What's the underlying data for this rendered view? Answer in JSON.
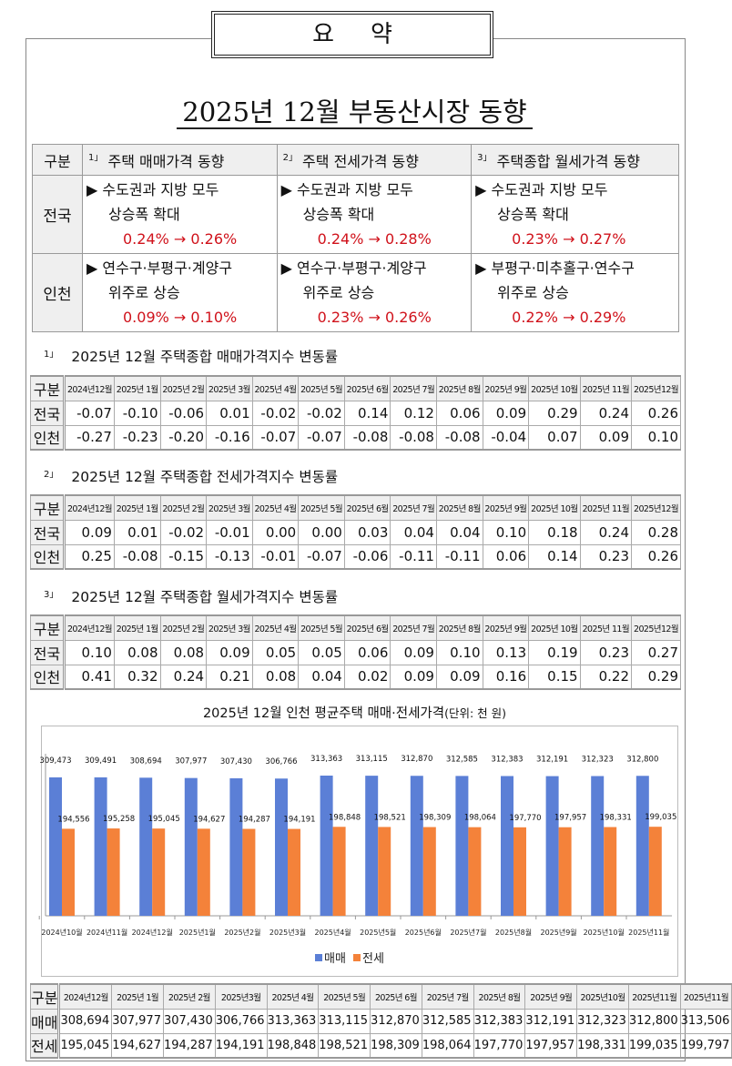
{
  "header": {
    "box": "요약",
    "title": "2025년 12월 부동산시장 동향"
  },
  "summary": {
    "corner": "구분",
    "columns": [
      {
        "num": "1」",
        "label": "주택 매매가격 동향"
      },
      {
        "num": "2」",
        "label": "주택 전세가격 동향"
      },
      {
        "num": "3」",
        "label": "주택종합 월세가격 동향"
      }
    ],
    "rows": [
      {
        "label": "전국",
        "cells": [
          {
            "line1": "▶ 수도권과 지방 모두",
            "line2": "상승폭 확대",
            "change": "0.24% → 0.26%"
          },
          {
            "line1": "▶ 수도권과 지방 모두",
            "line2": "상승폭 확대",
            "change": "0.24% → 0.28%"
          },
          {
            "line1": "▶ 수도권과 지방 모두",
            "line2": "상승폭 확대",
            "change": "0.23% → 0.27%"
          }
        ]
      },
      {
        "label": "인천",
        "cells": [
          {
            "line1": "▶ 연수구·부평구·계양구",
            "line2": "위주로 상승",
            "change": "0.09% → 0.10%"
          },
          {
            "line1": "▶ 연수구·부평구·계양구",
            "line2": "위주로 상승",
            "change": "0.23% → 0.26%"
          },
          {
            "line1": "▶ 부평구·미추홀구·연수구",
            "line2": "위주로 상승",
            "change": "0.22% → 0.29%"
          }
        ]
      }
    ]
  },
  "tables": [
    {
      "num": "1」",
      "title": "2025년 12월 주택종합 매매가격지수 변동률",
      "corner": "구분",
      "headers": [
        "2024년12월",
        "2025년 1월",
        "2025년 2월",
        "2025년 3월",
        "2025년 4월",
        "2025년 5월",
        "2025년 6월",
        "2025년 7월",
        "2025년 8월",
        "2025년 9월",
        "2025년 10월",
        "2025년 11월",
        "2025년12월"
      ],
      "rows": [
        {
          "label": "전국",
          "values": [
            "-0.07",
            "-0.10",
            "-0.06",
            "0.01",
            "-0.02",
            "-0.02",
            "0.14",
            "0.12",
            "0.06",
            "0.09",
            "0.29",
            "0.24",
            "0.26"
          ]
        },
        {
          "label": "인천",
          "values": [
            "-0.27",
            "-0.23",
            "-0.20",
            "-0.16",
            "-0.07",
            "-0.07",
            "-0.08",
            "-0.08",
            "-0.08",
            "-0.04",
            "0.07",
            "0.09",
            "0.10"
          ]
        }
      ]
    },
    {
      "num": "2」",
      "title": "2025년 12월 주택종합 전세가격지수 변동률",
      "corner": "구분",
      "headers": [
        "2024년12월",
        "2025년 1월",
        "2025년 2월",
        "2025년 3월",
        "2025년 4월",
        "2025년 5월",
        "2025년 6월",
        "2025년 7월",
        "2025년 8월",
        "2025년 9월",
        "2025년 10월",
        "2025년 11월",
        "2025년12월"
      ],
      "rows": [
        {
          "label": "전국",
          "values": [
            "0.09",
            "0.01",
            "-0.02",
            "-0.01",
            "0.00",
            "0.00",
            "0.03",
            "0.04",
            "0.04",
            "0.10",
            "0.18",
            "0.24",
            "0.28"
          ]
        },
        {
          "label": "인천",
          "values": [
            "0.25",
            "-0.08",
            "-0.15",
            "-0.13",
            "-0.01",
            "-0.07",
            "-0.06",
            "-0.11",
            "-0.11",
            "0.06",
            "0.14",
            "0.23",
            "0.26"
          ]
        }
      ]
    },
    {
      "num": "3」",
      "title": "2025년 12월 주택종합 월세가격지수 변동률",
      "corner": "구분",
      "headers": [
        "2024년12월",
        "2025년 1월",
        "2025년 2월",
        "2025년 3월",
        "2025년 4월",
        "2025년 5월",
        "2025년 6월",
        "2025년 7월",
        "2025년 8월",
        "2025년 9월",
        "2025년 10월",
        "2025년 11월",
        "2025년12월"
      ],
      "rows": [
        {
          "label": "전국",
          "values": [
            "0.10",
            "0.08",
            "0.08",
            "0.09",
            "0.05",
            "0.05",
            "0.06",
            "0.09",
            "0.10",
            "0.13",
            "0.19",
            "0.23",
            "0.27"
          ]
        },
        {
          "label": "인천",
          "values": [
            "0.41",
            "0.32",
            "0.24",
            "0.21",
            "0.08",
            "0.04",
            "0.02",
            "0.09",
            "0.09",
            "0.16",
            "0.15",
            "0.22",
            "0.29"
          ]
        }
      ]
    }
  ],
  "chart_title": {
    "main": "2025년 12월 인천 평균주택 매매·전세가격",
    "unit": "(단위: 천 원)"
  },
  "chart_data": {
    "type": "bar",
    "categories": [
      "2024년10월",
      "2024년11월",
      "2024년12월",
      "2025년1월",
      "2025년2월",
      "2025년3월",
      "2025년4월",
      "2025년5월",
      "2025년6월",
      "2025년7월",
      "2025년8월",
      "2025년9월",
      "2025년10월",
      "2025년11월"
    ],
    "series": [
      {
        "name": "매매",
        "color": "#5b7fd6",
        "values": [
          309473,
          309491,
          308694,
          307977,
          307430,
          306766,
          313363,
          313115,
          312870,
          312585,
          312383,
          312191,
          312323,
          312800
        ]
      },
      {
        "name": "전세",
        "color": "#f4823a",
        "values": [
          194556,
          195258,
          195045,
          194627,
          194287,
          194191,
          198848,
          198521,
          198309,
          198064,
          197770,
          197957,
          198331,
          199035
        ]
      }
    ],
    "legend": "bottom",
    "ylim": [
      0,
      350000
    ],
    "grid": false
  },
  "bottom_table": {
    "corner": "구분",
    "headers": [
      "2024년12월",
      "2025년 1월",
      "2025년 2월",
      "2025년3월",
      "2025년 4월",
      "2025년 5월",
      "2025년 6월",
      "2025년 7월",
      "2025년 8월",
      "2025년 9월",
      "2025년10월",
      "2025년11월",
      "2025년11월"
    ],
    "rows": [
      {
        "label": "매매",
        "values": [
          "308,694",
          "307,977",
          "307,430",
          "306,766",
          "313,363",
          "313,115",
          "312,870",
          "312,585",
          "312,383",
          "312,191",
          "312,323",
          "312,800",
          "313,506"
        ]
      },
      {
        "label": "전세",
        "values": [
          "195,045",
          "194,627",
          "194,287",
          "194,191",
          "198,848",
          "198,521",
          "198,309",
          "198,064",
          "197,770",
          "197,957",
          "198,331",
          "199,035",
          "199,797"
        ]
      }
    ]
  }
}
